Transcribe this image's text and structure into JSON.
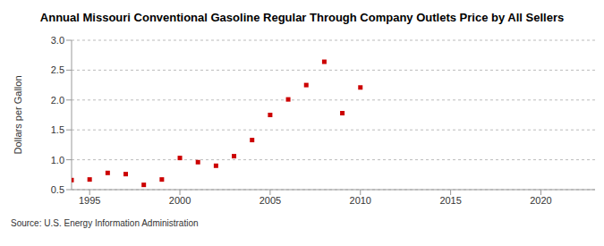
{
  "chart_data": {
    "type": "scatter",
    "title": "Annual Missouri Conventional Gasoline Regular Through Company Outlets Price by All Sellers",
    "source": "Source: U.S. Energy Information Administration",
    "y_label": "Dollars per Gallon",
    "x": [
      1994,
      1995,
      1996,
      1997,
      1998,
      1999,
      2000,
      2001,
      2002,
      2003,
      2004,
      2005,
      2006,
      2007,
      2008,
      2009,
      2010
    ],
    "values": [
      0.66,
      0.67,
      0.78,
      0.76,
      0.58,
      0.67,
      1.03,
      0.96,
      0.9,
      1.06,
      1.33,
      1.75,
      2.01,
      2.25,
      2.64,
      1.78,
      2.21
    ],
    "color": "#cc0000",
    "marker": "square",
    "xlim": [
      1994,
      2023
    ],
    "xticks": [
      1995,
      2000,
      2005,
      2010,
      2015,
      2020
    ],
    "ylim": [
      0.5,
      3.0
    ],
    "yticks": [
      0.5,
      {
        "value": 1.0,
        "label": "1.0"
      },
      1.5,
      {
        "value": 2.0,
        "label": "2.0"
      },
      2.5,
      {
        "value": 3.0,
        "label": "3.0"
      }
    ],
    "grid": true
  }
}
